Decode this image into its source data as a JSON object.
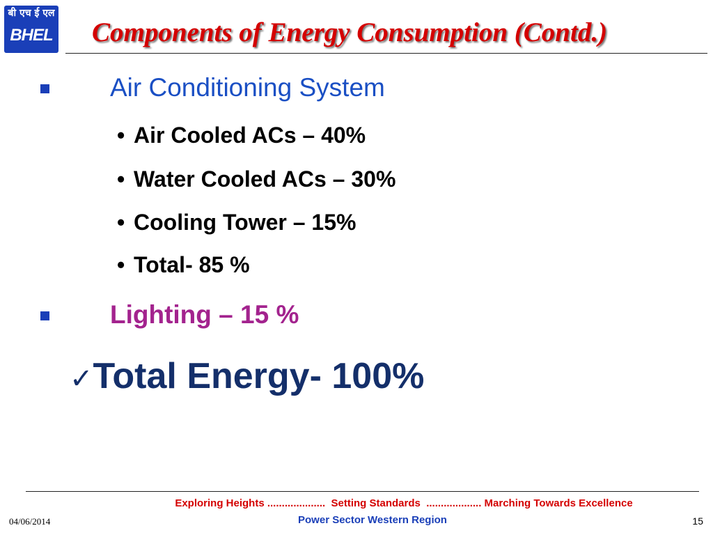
{
  "logo": {
    "hindi": "बी एच ई एल",
    "text": "BHEL"
  },
  "slide": {
    "title": "Components of Energy Consumption (Contd.)",
    "bullets": [
      {
        "text": "Air Conditioning System",
        "sub": [
          "Air Cooled ACs – 40%",
          "Water Cooled ACs – 30%",
          "Cooling Tower – 15%",
          "Total- 85 %"
        ]
      },
      {
        "text": "Lighting – 15 %"
      }
    ],
    "total_check": "✓",
    "total": "Total Energy- 100%"
  },
  "footer": {
    "tagline": "Exploring Heights ....................  Setting Standards  ................... Marching Towards Excellence",
    "region": "Power Sector Western Region",
    "date": "04/06/2014",
    "slide_number": "15"
  },
  "colors": {
    "title": "#d40000",
    "heading_blue": "#1a4fc4",
    "lighting_purple": "#a3238e",
    "total_navy": "#142f6a",
    "logo_blue": "#1a3fb8"
  }
}
